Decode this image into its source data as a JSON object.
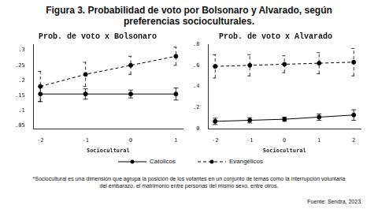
{
  "title": "Figura 3. Probabilidad de voto por Bolsonaro y Alvarado, según preferencias socioculturales.",
  "note": "*Sociocultural es una dimensión que agrupa la posición de los votantes en un conjunto de temas como la interrupción voluntaria del embarazo, el matrimonio entre personas del mismo sexo, entre otros.",
  "source": "Fuente: Sendra, 2023.",
  "chart_data": [
    {
      "type": "line",
      "title": "Prob. de voto x Bolsonaro",
      "x_label": "Sociocultural",
      "x": [
        -2,
        -1,
        0,
        1
      ],
      "xlim": [
        -2.15,
        1.15
      ],
      "xticks": [
        -2,
        -1,
        0,
        1
      ],
      "ylim": [
        0.04,
        0.32
      ],
      "yticks": [
        {
          "value": 0.05,
          "label": ".05"
        },
        {
          "value": 0.1,
          "label": ".1"
        },
        {
          "value": 0.15,
          "label": ".15"
        },
        {
          "value": 0.2,
          "label": ".2"
        },
        {
          "value": 0.25,
          "label": ".25"
        },
        {
          "value": 0.3,
          "label": ".3"
        }
      ],
      "grid": false,
      "series": [
        {
          "name": "Católicos",
          "color": "#000000",
          "marker": "circle",
          "line_style": "solid",
          "values": [
            0.155,
            0.155,
            0.155,
            0.155
          ],
          "error_low": [
            0.13,
            0.138,
            0.142,
            0.135
          ],
          "error_high": [
            0.18,
            0.172,
            0.168,
            0.175
          ]
        },
        {
          "name": "Evangélicos",
          "color": "#000000",
          "marker": "circle",
          "line_style": "dashed",
          "values": [
            0.18,
            0.22,
            0.25,
            0.28
          ],
          "error_low": [
            0.13,
            0.18,
            0.22,
            0.25
          ],
          "error_high": [
            0.23,
            0.26,
            0.28,
            0.31
          ]
        }
      ]
    },
    {
      "type": "line",
      "title": "Prob. de voto x Alvarado",
      "x_label": "Sociocultural",
      "x": [
        -2,
        -1,
        0,
        1,
        2
      ],
      "xlim": [
        -2.2,
        2.2
      ],
      "xticks": [
        -2,
        -1,
        0,
        1,
        2
      ],
      "ylim": [
        0,
        0.8
      ],
      "yticks": [
        0,
        {
          "value": 0.2,
          "label": ".2"
        },
        {
          "value": 0.4,
          "label": ".4"
        },
        {
          "value": 0.6,
          "label": ".6"
        },
        {
          "value": 0.8,
          "label": ".8"
        }
      ],
      "grid": false,
      "series": [
        {
          "name": "Católicos",
          "color": "#000000",
          "marker": "circle",
          "line_style": "solid",
          "values": [
            0.07,
            0.08,
            0.09,
            0.11,
            0.13
          ],
          "error_low": [
            0.04,
            0.055,
            0.07,
            0.08,
            0.08
          ],
          "error_high": [
            0.1,
            0.105,
            0.11,
            0.14,
            0.18
          ]
        },
        {
          "name": "Evangélicos",
          "color": "#000000",
          "marker": "circle",
          "line_style": "dashed",
          "values": [
            0.59,
            0.6,
            0.61,
            0.62,
            0.63
          ],
          "error_low": [
            0.48,
            0.5,
            0.53,
            0.52,
            0.5
          ],
          "error_high": [
            0.7,
            0.7,
            0.69,
            0.72,
            0.76
          ]
        }
      ]
    }
  ]
}
